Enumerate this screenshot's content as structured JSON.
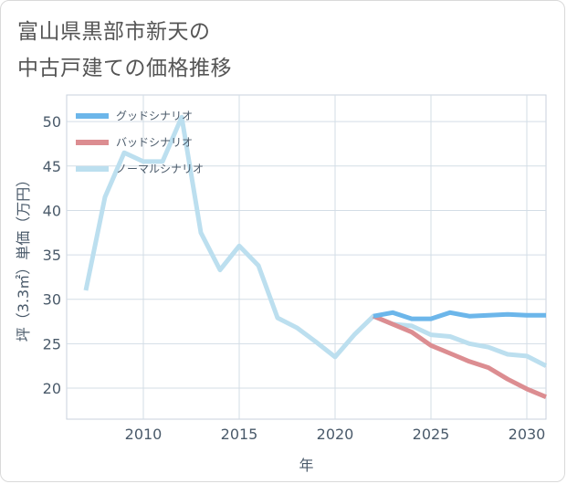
{
  "title_lines": [
    "富山県黒部市新天の",
    "中古戸建ての価格推移"
  ],
  "chart_data": {
    "type": "line",
    "xlabel": "年",
    "ylabel": "坪（3.3㎡）単価（万円）",
    "xlim": [
      2006,
      2031
    ],
    "ylim": [
      16.5,
      53
    ],
    "xticks": [
      2010,
      2015,
      2020,
      2025,
      2030
    ],
    "yticks": [
      20,
      25,
      30,
      35,
      40,
      45,
      50
    ],
    "grid": true,
    "legend_position": "top-left",
    "series": [
      {
        "name": "グッドシナリオ",
        "color": "#6cb6ea",
        "x": [
          2022,
          2023,
          2024,
          2025,
          2026,
          2027,
          2028,
          2029,
          2030,
          2031
        ],
        "y": [
          28.1,
          28.5,
          27.8,
          27.8,
          28.5,
          28.1,
          28.2,
          28.3,
          28.2,
          28.2
        ]
      },
      {
        "name": "バッドシナリオ",
        "color": "#dc8d91",
        "x": [
          2022,
          2023,
          2024,
          2025,
          2026,
          2027,
          2028,
          2029,
          2030,
          2031
        ],
        "y": [
          28.1,
          27.2,
          26.3,
          24.8,
          23.9,
          23.0,
          22.3,
          21.0,
          19.9,
          19.0
        ]
      },
      {
        "name": "ノーマルシナリオ",
        "color": "#bcdfef",
        "x": [
          2007,
          2008,
          2009,
          2010,
          2011,
          2012,
          2013,
          2014,
          2015,
          2016,
          2017,
          2018,
          2019,
          2020,
          2021,
          2022,
          2023,
          2024,
          2025,
          2026,
          2027,
          2028,
          2029,
          2030,
          2031
        ],
        "y": [
          31.0,
          41.5,
          46.5,
          45.5,
          45.5,
          50.5,
          37.5,
          33.3,
          36.0,
          33.8,
          27.9,
          26.8,
          25.2,
          23.5,
          26.0,
          28.1,
          27.2,
          27.0,
          26.0,
          25.8,
          25.0,
          24.6,
          23.8,
          23.6,
          22.5
        ]
      }
    ]
  }
}
